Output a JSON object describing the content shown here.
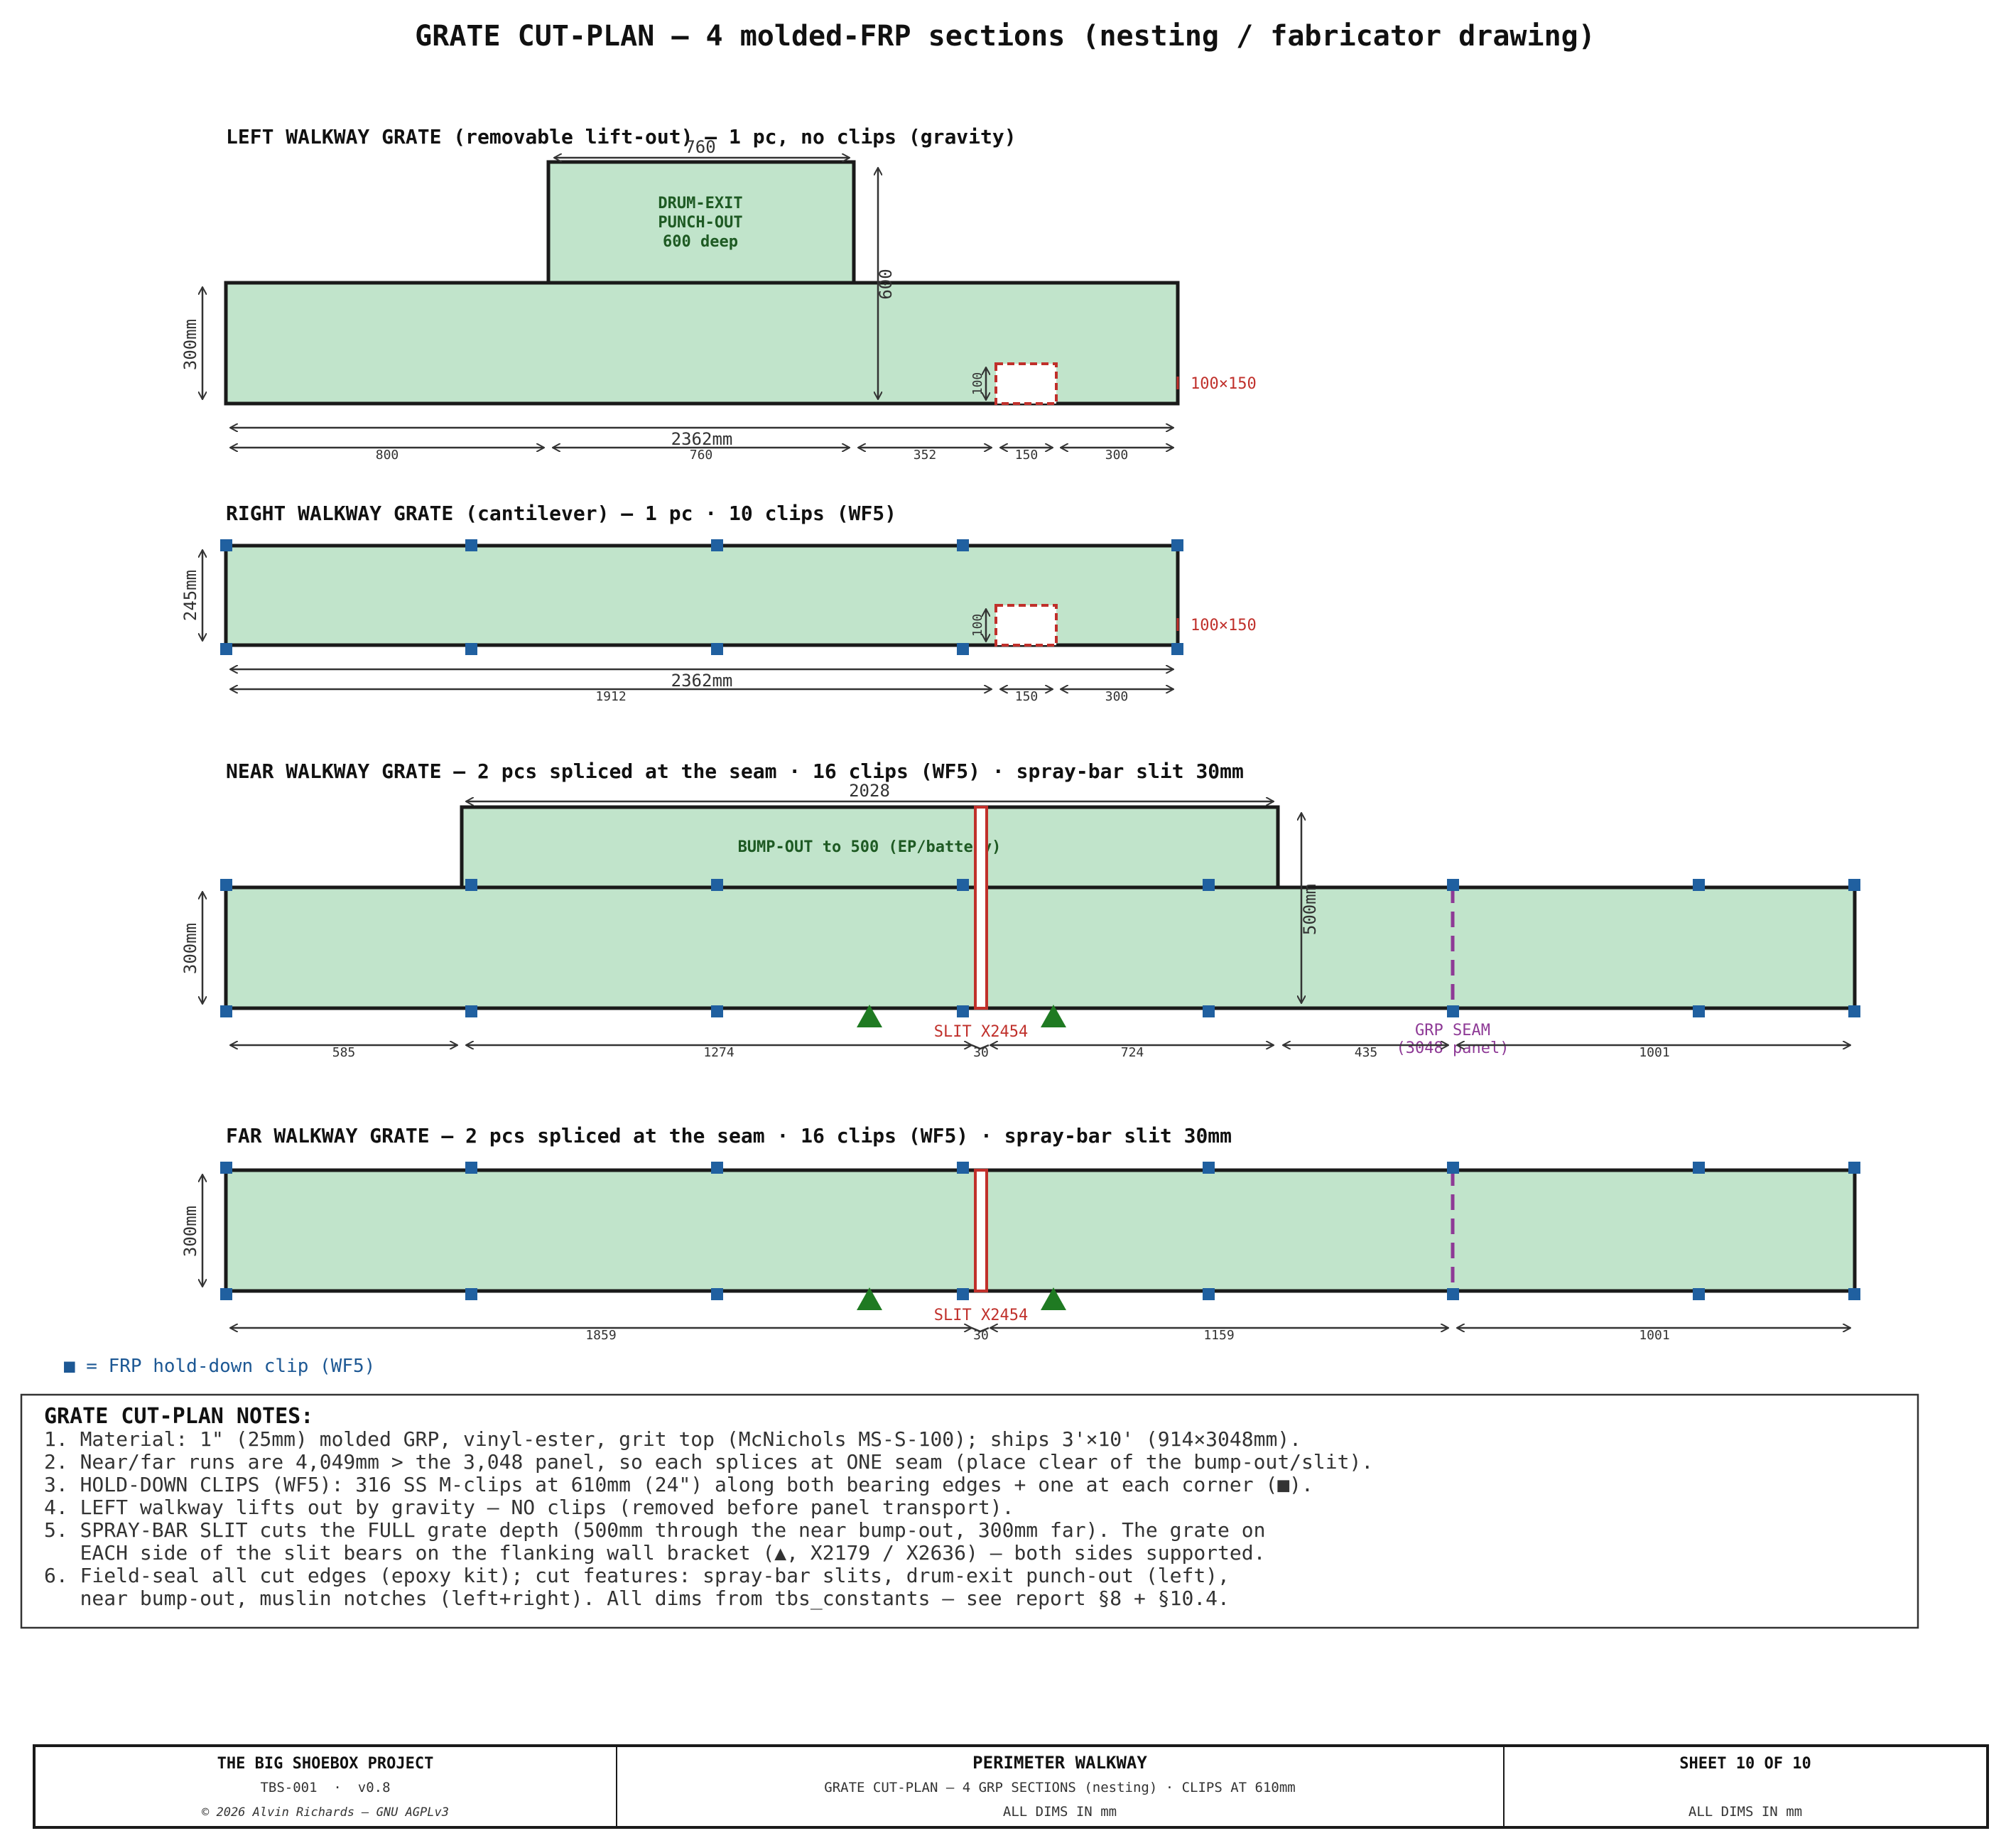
{
  "title": "GRATE CUT-PLAN — 4 molded-FRP sections (nesting / fabricator drawing)",
  "sections": {
    "left": {
      "title": "LEFT WALKWAY GRATE (removable lift-out) — 1 pc, no clips (gravity)",
      "punchout_label": [
        "DRUM-EXIT",
        "PUNCH-OUT",
        "600 deep"
      ],
      "dim_top": "760",
      "dim_depth": "600",
      "dim_height": "300mm",
      "dim_total": "2362mm",
      "dim_notch_h": "100",
      "notch_label": "100×150",
      "segments": [
        "800",
        "760",
        "352",
        "150",
        "300"
      ]
    },
    "right": {
      "title": "RIGHT WALKWAY GRATE (cantilever) — 1 pc · 10 clips (WF5)",
      "dim_height": "245mm",
      "dim_total": "2362mm",
      "dim_notch_h": "100",
      "notch_label": "100×150",
      "segments": [
        "1912",
        "150",
        "300"
      ]
    },
    "near": {
      "title": "NEAR WALKWAY GRATE — 2 pcs spliced at the seam · 16 clips (WF5) · spray-bar slit 30mm",
      "bumpout_label": "BUMP-OUT to 500 (EP/battery)",
      "dim_top": "2028",
      "dim_depth": "500mm",
      "dim_height": "300mm",
      "slit_label": "SLIT X2454",
      "seam_label": [
        "GRP SEAM",
        "(3048 panel)"
      ],
      "segments": [
        "585",
        "1274",
        "30",
        "724",
        "435",
        "1001"
      ]
    },
    "far": {
      "title": "FAR WALKWAY GRATE — 2 pcs spliced at the seam · 16 clips (WF5) · spray-bar slit 30mm",
      "dim_height": "300mm",
      "slit_label": "SLIT X2454",
      "segments": [
        "1859",
        "30",
        "1159",
        "1001"
      ]
    }
  },
  "legend": "■ = FRP hold-down clip (WF5)",
  "notes": {
    "heading": "GRATE CUT-PLAN NOTES:",
    "lines": [
      "1. Material: 1\" (25mm) molded GRP, vinyl-ester, grit top (McNichols MS-S-100); ships 3'×10' (914×3048mm).",
      "2. Near/far runs are 4,049mm > the 3,048 panel, so each splices at ONE seam (place clear of the bump-out/slit).",
      "3. HOLD-DOWN CLIPS (WF5): 316 SS M-clips at 610mm (24\") along both bearing edges + one at each corner (■).",
      "4. LEFT walkway lifts out by gravity — NO clips (removed before panel transport).",
      "5. SPRAY-BAR SLIT cuts the FULL grate depth (500mm through the near bump-out, 300mm far). The grate on",
      "   EACH side of the slit bears on the flanking wall bracket (▲, X2179 / X2636) — both sides supported.",
      "6. Field-seal all cut edges (epoxy kit); cut features: spray-bar slits, drum-exit punch-out (left),",
      "   near bump-out, muslin notches (left+right). All dims from tbs_constants — see report §8 + §10.4."
    ]
  },
  "title_block": {
    "project": "THE BIG SHOEBOX PROJECT",
    "doc_id": "TBS-001  ·  v0.8",
    "copyright": "© 2026 Alvin Richards — GNU AGPLv3",
    "sheet_title": "PERIMETER WALKWAY",
    "sheet_subtitle": "GRATE CUT-PLAN — 4 GRP SECTIONS (nesting) · CLIPS AT 610mm",
    "units_center": "ALL DIMS IN mm",
    "sheet_no": "SHEET 10 OF 10",
    "units_right": "ALL DIMS IN mm"
  },
  "colors": {
    "grate_fill": "#c1e4cb",
    "clip": "#2060a0",
    "slit": "#c0302b",
    "seam": "#8e3a96",
    "support": "#1f7a22"
  }
}
